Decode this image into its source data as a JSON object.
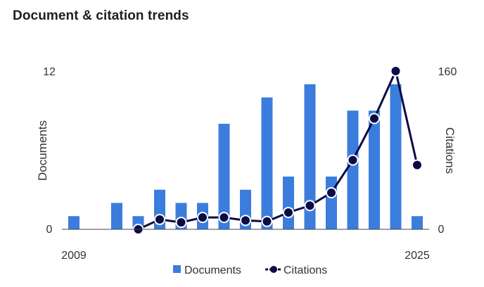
{
  "title": "Document & citation trends",
  "chart_data": {
    "type": "bar+line",
    "title": "Document & citation trends",
    "x": [
      2009,
      2010,
      2011,
      2012,
      2013,
      2014,
      2015,
      2016,
      2017,
      2018,
      2019,
      2020,
      2021,
      2022,
      2023,
      2024,
      2025
    ],
    "x_tick_labels": [
      "2009",
      "2025"
    ],
    "left_axis": {
      "label": "Documents",
      "range": [
        0,
        12
      ],
      "tick_labels": [
        "0",
        "12"
      ]
    },
    "right_axis": {
      "label": "Citations",
      "range": [
        0,
        160
      ],
      "tick_labels": [
        "0",
        "160"
      ]
    },
    "series": [
      {
        "name": "Documents",
        "type": "bar",
        "axis": "left",
        "color": "#3b7ddd",
        "values": [
          1,
          0,
          2,
          1,
          3,
          2,
          2,
          8,
          3,
          10,
          4,
          11,
          4,
          9,
          9,
          11,
          1
        ]
      },
      {
        "name": "Citations",
        "type": "line",
        "axis": "right",
        "color": "#0b0b45",
        "values": [
          null,
          null,
          null,
          0,
          10,
          7,
          12,
          12,
          9,
          8,
          17,
          24,
          37,
          70,
          112,
          160,
          65
        ]
      }
    ],
    "legend": {
      "position": "bottom",
      "entries": [
        "Documents",
        "Citations"
      ]
    },
    "grid": false
  }
}
